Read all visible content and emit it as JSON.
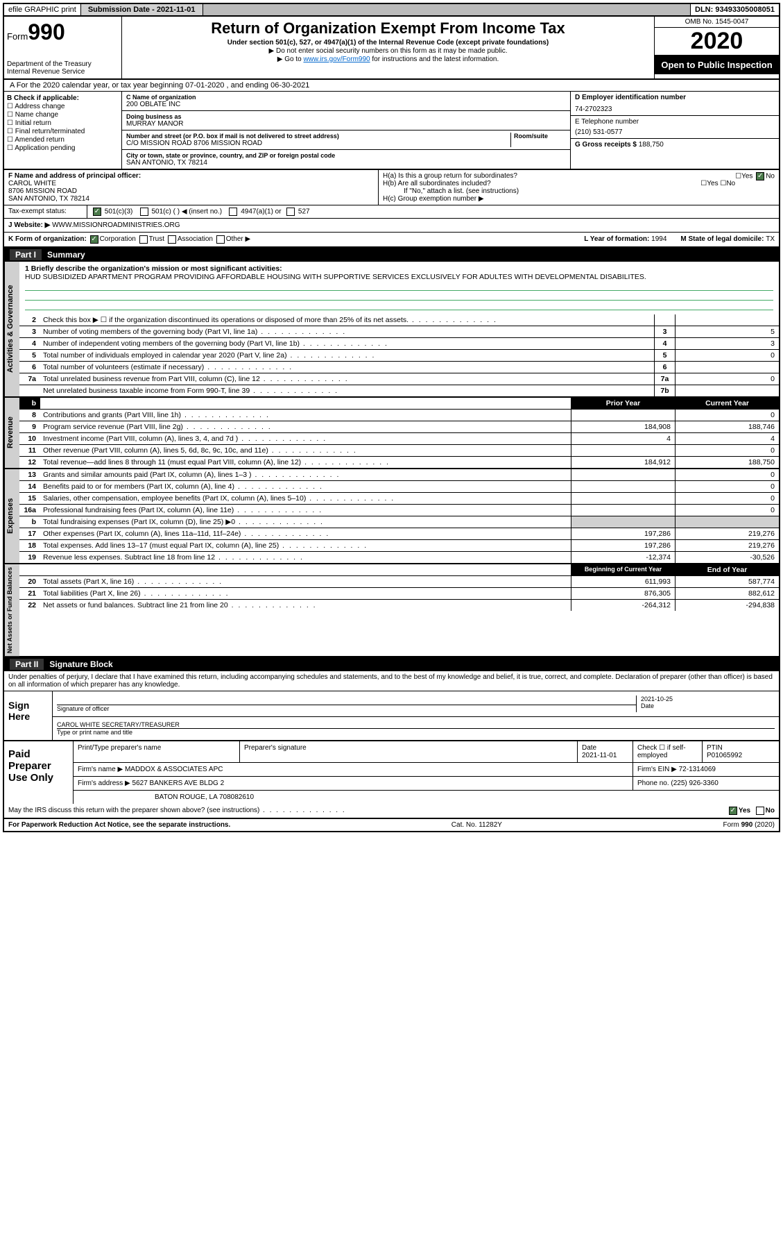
{
  "topbar": {
    "efile": "efile GRAPHIC print",
    "submission": "Submission Date - 2021-11-01",
    "dln": "DLN: 93493305008051"
  },
  "header": {
    "form_small": "Form",
    "form_num": "990",
    "title": "Return of Organization Exempt From Income Tax",
    "sub1": "Under section 501(c), 527, or 4947(a)(1) of the Internal Revenue Code (except private foundations)",
    "sub2": "▶ Do not enter social security numbers on this form as it may be made public.",
    "sub3_pre": "▶ Go to ",
    "sub3_link": "www.irs.gov/Form990",
    "sub3_post": " for instructions and the latest information.",
    "dept": "Department of the Treasury\nInternal Revenue Service",
    "omb": "OMB No. 1545-0047",
    "year": "2020",
    "public": "Open to Public Inspection"
  },
  "period": "A For the 2020 calendar year, or tax year beginning 07-01-2020    , and ending 06-30-2021",
  "boxB": {
    "label": "B Check if applicable:",
    "items": [
      "Address change",
      "Name change",
      "Initial return",
      "Final return/terminated",
      "Amended return",
      "Application pending"
    ]
  },
  "boxC": {
    "name_label": "C Name of organization",
    "name": "200 OBLATE INC",
    "dba_label": "Doing business as",
    "dba": "MURRAY MANOR",
    "addr_label": "Number and street (or P.O. box if mail is not delivered to street address)",
    "room_label": "Room/suite",
    "addr": "C/O MISSION ROAD 8706 MISSION ROAD",
    "city_label": "City or town, state or province, country, and ZIP or foreign postal code",
    "city": "SAN ANTONIO, TX  78214"
  },
  "boxD": {
    "label": "D Employer identification number",
    "val": "74-2702323"
  },
  "boxE": {
    "label": "E Telephone number",
    "val": "(210) 531-0577"
  },
  "boxG": {
    "label": "G Gross receipts $ ",
    "val": "188,750"
  },
  "boxF": {
    "label": "F  Name and address of principal officer:",
    "name": "CAROL WHITE",
    "addr1": "8706 MISSION ROAD",
    "addr2": "SAN ANTONIO, TX  78214"
  },
  "boxH": {
    "a": "H(a)  Is this a group return for subordinates?",
    "b": "H(b)  Are all subordinates included?",
    "bnote": "If \"No,\" attach a list. (see instructions)",
    "c": "H(c)  Group exemption number ▶",
    "yes": "Yes",
    "no": "No"
  },
  "taxstatus": {
    "label": "Tax-exempt status:",
    "o1": "501(c)(3)",
    "o2": "501(c) (  ) ◀ (insert no.)",
    "o3": "4947(a)(1) or",
    "o4": "527"
  },
  "website": {
    "label": "J  Website: ▶",
    "val": "WWW.MISSIONROADMINISTRIES.ORG"
  },
  "rowK": {
    "label": "K Form of organization:",
    "corp": "Corporation",
    "trust": "Trust",
    "assoc": "Association",
    "other": "Other ▶",
    "l_label": "L Year of formation: ",
    "l_val": "1994",
    "m_label": "M State of legal domicile: ",
    "m_val": "TX"
  },
  "part1_hdr": "Summary",
  "mission": {
    "q": "1  Briefly describe the organization's mission or most significant activities:",
    "text": "HUD SUBSIDIZED APARTMENT PROGRAM PROVIDING AFFORDABLE HOUSING WITH SUPPORTIVE SERVICES EXCLUSIVELY FOR ADULTES WITH DEVELOPMENTAL DISABILITES."
  },
  "gov_lines": [
    {
      "n": "2",
      "t": "Check this box ▶ ☐  if the organization discontinued its operations or disposed of more than 25% of its net assets.",
      "box": "",
      "v": ""
    },
    {
      "n": "3",
      "t": "Number of voting members of the governing body (Part VI, line 1a)",
      "box": "3",
      "v": "5"
    },
    {
      "n": "4",
      "t": "Number of independent voting members of the governing body (Part VI, line 1b)",
      "box": "4",
      "v": "3"
    },
    {
      "n": "5",
      "t": "Total number of individuals employed in calendar year 2020 (Part V, line 2a)",
      "box": "5",
      "v": "0"
    },
    {
      "n": "6",
      "t": "Total number of volunteers (estimate if necessary)",
      "box": "6",
      "v": ""
    },
    {
      "n": "7a",
      "t": "Total unrelated business revenue from Part VIII, column (C), line 12",
      "box": "7a",
      "v": "0"
    },
    {
      "n": "",
      "t": "Net unrelated business taxable income from Form 990-T, line 39",
      "box": "7b",
      "v": ""
    }
  ],
  "col_hdr": {
    "prior": "Prior Year",
    "current": "Current Year"
  },
  "rev_lines": [
    {
      "n": "8",
      "t": "Contributions and grants (Part VIII, line 1h)",
      "p": "",
      "c": "0"
    },
    {
      "n": "9",
      "t": "Program service revenue (Part VIII, line 2g)",
      "p": "184,908",
      "c": "188,746"
    },
    {
      "n": "10",
      "t": "Investment income (Part VIII, column (A), lines 3, 4, and 7d )",
      "p": "4",
      "c": "4"
    },
    {
      "n": "11",
      "t": "Other revenue (Part VIII, column (A), lines 5, 6d, 8c, 9c, 10c, and 11e)",
      "p": "",
      "c": "0"
    },
    {
      "n": "12",
      "t": "Total revenue—add lines 8 through 11 (must equal Part VIII, column (A), line 12)",
      "p": "184,912",
      "c": "188,750"
    }
  ],
  "exp_lines": [
    {
      "n": "13",
      "t": "Grants and similar amounts paid (Part IX, column (A), lines 1–3 )",
      "p": "",
      "c": "0"
    },
    {
      "n": "14",
      "t": "Benefits paid to or for members (Part IX, column (A), line 4)",
      "p": "",
      "c": "0"
    },
    {
      "n": "15",
      "t": "Salaries, other compensation, employee benefits (Part IX, column (A), lines 5–10)",
      "p": "",
      "c": "0"
    },
    {
      "n": "16a",
      "t": "Professional fundraising fees (Part IX, column (A), line 11e)",
      "p": "",
      "c": "0"
    },
    {
      "n": "b",
      "t": "Total fundraising expenses (Part IX, column (D), line 25) ▶0",
      "p": "shade",
      "c": "shade"
    },
    {
      "n": "17",
      "t": "Other expenses (Part IX, column (A), lines 11a–11d, 11f–24e)",
      "p": "197,286",
      "c": "219,276"
    },
    {
      "n": "18",
      "t": "Total expenses. Add lines 13–17 (must equal Part IX, column (A), line 25)",
      "p": "197,286",
      "c": "219,276"
    },
    {
      "n": "19",
      "t": "Revenue less expenses. Subtract line 18 from line 12",
      "p": "-12,374",
      "c": "-30,526"
    }
  ],
  "net_hdr": {
    "begin": "Beginning of Current Year",
    "end": "End of Year"
  },
  "net_lines": [
    {
      "n": "20",
      "t": "Total assets (Part X, line 16)",
      "p": "611,993",
      "c": "587,774"
    },
    {
      "n": "21",
      "t": "Total liabilities (Part X, line 26)",
      "p": "876,305",
      "c": "882,612"
    },
    {
      "n": "22",
      "t": "Net assets or fund balances. Subtract line 21 from line 20",
      "p": "-264,312",
      "c": "-294,838"
    }
  ],
  "vtabs": {
    "gov": "Activities & Governance",
    "rev": "Revenue",
    "exp": "Expenses",
    "net": "Net Assets or Fund Balances"
  },
  "part2_hdr": "Signature Block",
  "sig": {
    "decl": "Under penalties of perjury, I declare that I have examined this return, including accompanying schedules and statements, and to the best of my knowledge and belief, it is true, correct, and complete. Declaration of preparer (other than officer) is based on all information of which preparer has any knowledge.",
    "here": "Sign Here",
    "sig_label": "Signature of officer",
    "date": "2021-10-25",
    "date_label": "Date",
    "name": "CAROL WHITE  SECRETARY/TREASURER",
    "name_label": "Type or print name and title"
  },
  "prep": {
    "label": "Paid Preparer Use Only",
    "h1": "Print/Type preparer's name",
    "h2": "Preparer's signature",
    "h3": "Date",
    "h3v": "2021-11-01",
    "h4": "Check ☐ if self-employed",
    "h5": "PTIN",
    "h5v": "P01065992",
    "firm_label": "Firm's name    ▶",
    "firm": "MADDOX & ASSOCIATES APC",
    "ein_label": "Firm's EIN ▶",
    "ein": "72-1314069",
    "addr_label": "Firm's address ▶",
    "addr1": "5627 BANKERS AVE BLDG 2",
    "addr2": "BATON ROUGE, LA  708082610",
    "phone_label": "Phone no. ",
    "phone": "(225) 926-3360"
  },
  "discuss": "May the IRS discuss this return with the preparer shown above? (see instructions)",
  "footer": {
    "left": "For Paperwork Reduction Act Notice, see the separate instructions.",
    "mid": "Cat. No. 11282Y",
    "right": "Form 990 (2020)"
  }
}
